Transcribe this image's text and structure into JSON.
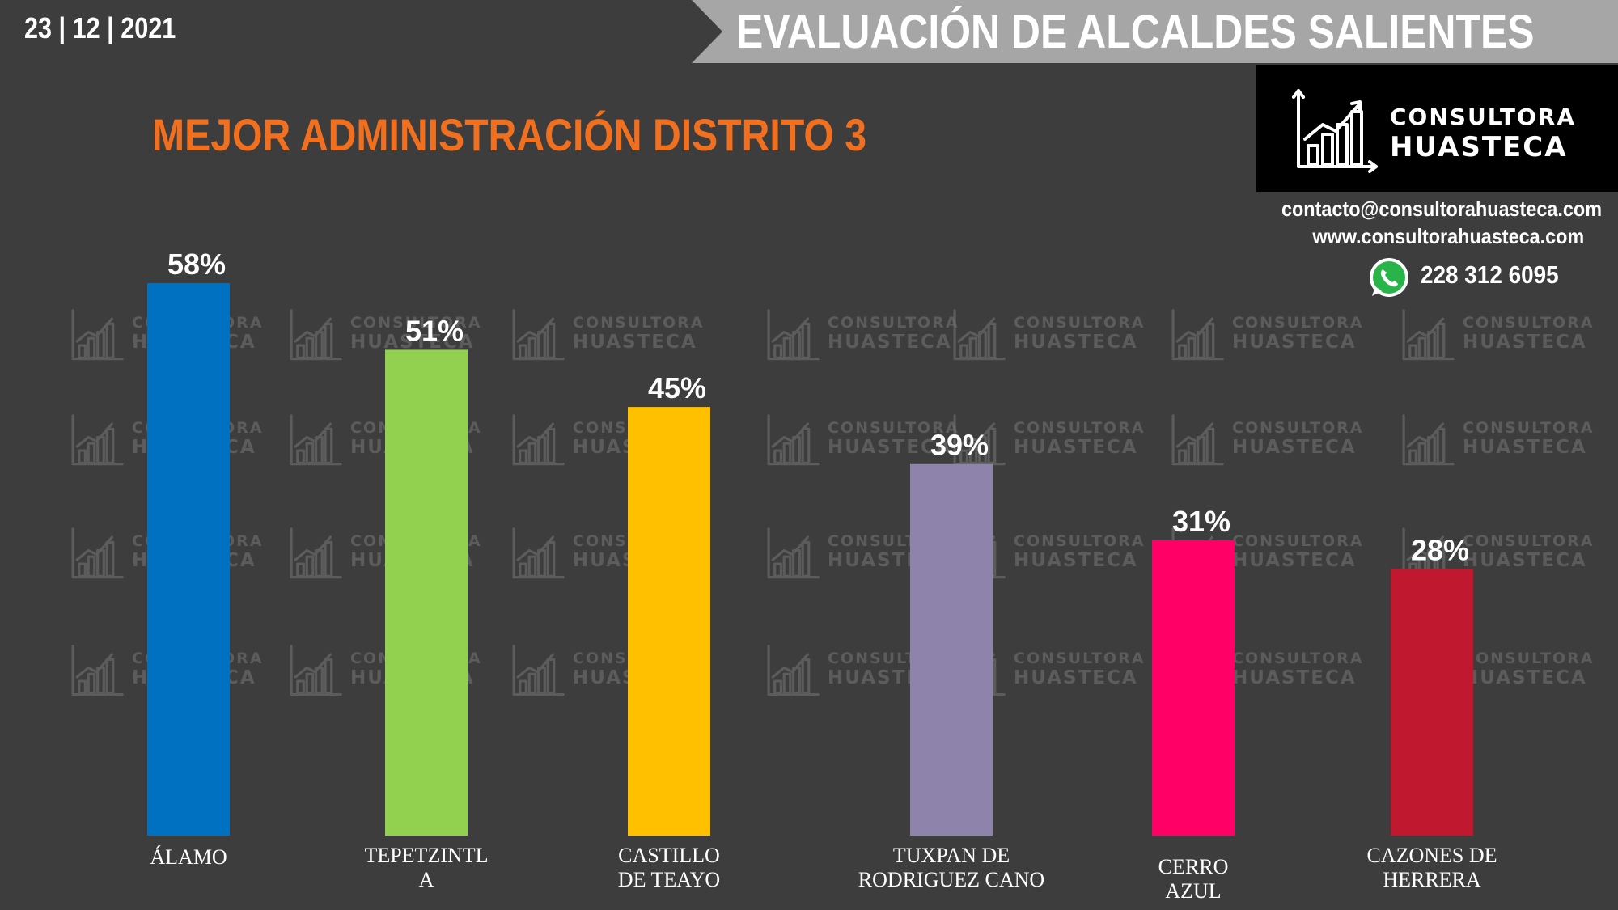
{
  "header": {
    "date": "23 | 12 | 2021",
    "title": "EVALUACIÓN DE ALCALDES SALIENTES"
  },
  "subtitle": "MEJOR ADMINISTRACIÓN DISTRITO 3",
  "brand": {
    "line1": "CONSULTORA",
    "line2": "HUASTECA",
    "email": "contacto@consultorahuasteca.com",
    "website": "www.consultorahuasteca.com",
    "phone": "228 312 6095",
    "phone_icon": "whatsapp-icon",
    "logo_icon": "rising-bar-chart-icon"
  },
  "colors": {
    "background": "#3d3d3d",
    "banner": "#a6a6a6",
    "subtitle": "#f07020"
  },
  "chart_data": {
    "type": "bar",
    "title": "MEJOR ADMINISTRACIÓN DISTRITO 3",
    "categories": [
      [
        "ÁLAMO"
      ],
      [
        "TEPETZINTL",
        "A"
      ],
      [
        "CASTILLO",
        "DE TEAYO"
      ],
      [
        "TUXPAN DE",
        "RODRIGUEZ CANO"
      ],
      [
        "CERRO",
        "AZUL"
      ],
      [
        "CAZONES DE",
        "HERRERA"
      ]
    ],
    "values": [
      58,
      51,
      45,
      39,
      31,
      28
    ],
    "value_labels": [
      "58%",
      "51%",
      "45%",
      "39%",
      "31%",
      "28%"
    ],
    "colors": [
      "#0070c0",
      "#92d050",
      "#ffc000",
      "#8e84ab",
      "#ff0066",
      "#c0182e"
    ],
    "ylim": [
      0,
      58
    ],
    "grid": false,
    "legend": "none"
  }
}
